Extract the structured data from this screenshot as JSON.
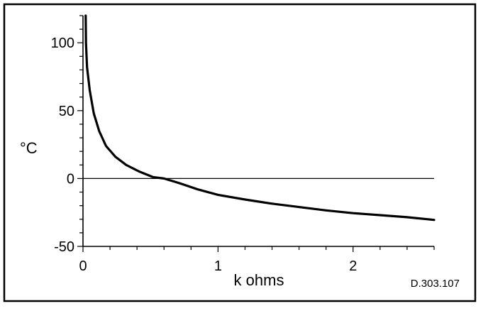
{
  "chart_data": {
    "type": "line",
    "title": "",
    "xlabel": "k ohms",
    "ylabel": "°C",
    "xlim": [
      0,
      2.6
    ],
    "ylim": [
      -50,
      120
    ],
    "x_ticks": [
      0,
      1,
      2
    ],
    "x_tick_labels": [
      "0",
      "1",
      "2"
    ],
    "y_ticks": [
      -50,
      0,
      50,
      100
    ],
    "y_tick_labels": [
      "-50",
      "0",
      "50",
      "100"
    ],
    "reference_line_y": 0,
    "grid": false,
    "legend": "none",
    "line_color": "#000000",
    "series": [
      {
        "x": [
          0.02,
          0.022,
          0.03,
          0.05,
          0.08,
          0.12,
          0.17,
          0.24,
          0.32,
          0.42,
          0.52,
          0.6,
          0.7,
          0.85,
          1.0,
          1.2,
          1.4,
          1.6,
          1.8,
          2.0,
          2.2,
          2.4,
          2.6
        ],
        "y": [
          120,
          100,
          82,
          65,
          48,
          35,
          24,
          16,
          10,
          5,
          1,
          0,
          -3,
          -8,
          -12,
          -15.5,
          -18.5,
          -21,
          -23.5,
          -25.5,
          -27,
          -28.5,
          -30.5
        ]
      }
    ]
  },
  "figure_ref": "D.303.107"
}
